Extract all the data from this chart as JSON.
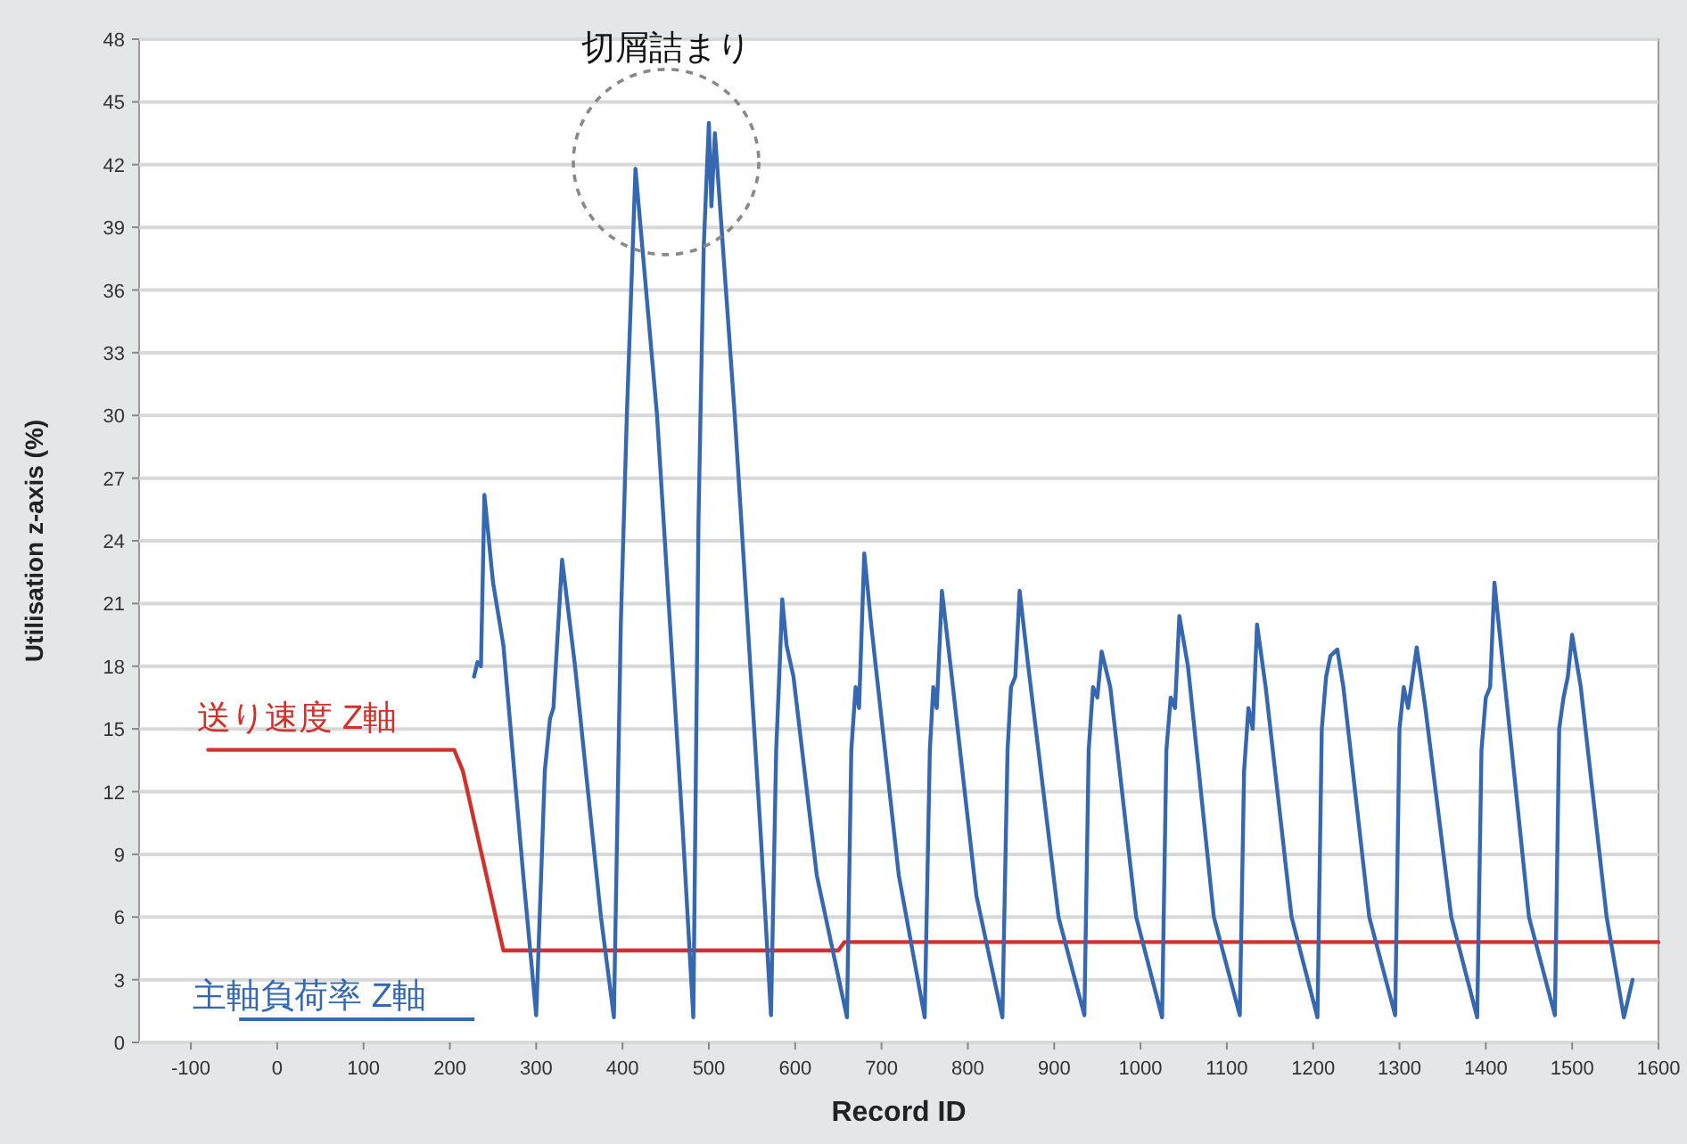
{
  "chart_data": {
    "type": "line",
    "xlabel": "Record ID",
    "ylabel": "Utilisation z-axis (%)",
    "xlim": [
      -160,
      1600
    ],
    "ylim": [
      0,
      48
    ],
    "xticks": [
      -100,
      0,
      100,
      200,
      300,
      400,
      500,
      600,
      700,
      800,
      900,
      1000,
      1100,
      1200,
      1300,
      1400,
      1500,
      1600
    ],
    "yticks": [
      0,
      3,
      6,
      9,
      12,
      15,
      18,
      21,
      24,
      27,
      30,
      33,
      36,
      39,
      42,
      45,
      48
    ],
    "grid": "y",
    "legend": false,
    "annotations": [
      {
        "text": "切屑詰まり",
        "x": 500,
        "y": 44
      }
    ],
    "series": [
      {
        "name": "送り速度 Z軸",
        "color": "#d0312d",
        "x": [
          -80,
          205,
          215,
          262,
          650,
          657,
          1600
        ],
        "values": [
          14,
          14,
          13,
          4.4,
          4.4,
          4.8,
          4.8
        ]
      },
      {
        "name": "主軸負荷率 Z軸",
        "color": "#3568b0",
        "x": [
          228,
          232,
          236,
          240,
          250,
          262,
          285,
          300,
          310,
          316,
          320,
          322,
          330,
          345,
          375,
          390,
          398,
          405,
          415,
          440,
          470,
          482,
          488,
          494,
          500,
          503,
          507,
          530,
          560,
          572,
          578,
          582,
          585,
          590,
          598,
          625,
          660,
          665,
          670,
          674,
          680,
          688,
          720,
          750,
          756,
          760,
          764,
          770,
          780,
          810,
          840,
          846,
          850,
          855,
          860,
          870,
          905,
          935,
          940,
          945,
          950,
          955,
          965,
          995,
          1025,
          1030,
          1035,
          1040,
          1045,
          1055,
          1085,
          1115,
          1120,
          1125,
          1130,
          1135,
          1145,
          1175,
          1205,
          1210,
          1215,
          1220,
          1228,
          1235,
          1265,
          1295,
          1300,
          1305,
          1310,
          1320,
          1330,
          1360,
          1390,
          1395,
          1400,
          1405,
          1410,
          1420,
          1450,
          1480,
          1485,
          1490,
          1495,
          1500,
          1510,
          1540,
          1560,
          1570
        ],
        "values": [
          17.5,
          18.2,
          18,
          26.2,
          22,
          19,
          8,
          1.3,
          13,
          15.5,
          16,
          17.5,
          23.1,
          18,
          6,
          1.2,
          20,
          30,
          41.8,
          30,
          10,
          1.2,
          25,
          38,
          44,
          40,
          43.5,
          30,
          10,
          1.3,
          14,
          18,
          21.2,
          19,
          17.5,
          8,
          1.2,
          14,
          17,
          16,
          23.4,
          20,
          8,
          1.2,
          14,
          17,
          16,
          21.6,
          18,
          7,
          1.2,
          14,
          17,
          17.5,
          21.6,
          18,
          6,
          1.3,
          14,
          17,
          16.5,
          18.7,
          17,
          6,
          1.2,
          14,
          16.5,
          16,
          20.4,
          18,
          6,
          1.3,
          13,
          16,
          15,
          20,
          17,
          6,
          1.2,
          15,
          17.5,
          18.5,
          18.8,
          17,
          6,
          1.3,
          15,
          17,
          16,
          18.9,
          16,
          6,
          1.2,
          14,
          16.5,
          17,
          22,
          18,
          6,
          1.3,
          15,
          16.5,
          17.5,
          19.5,
          17,
          6,
          1.2,
          3
        ]
      }
    ]
  }
}
